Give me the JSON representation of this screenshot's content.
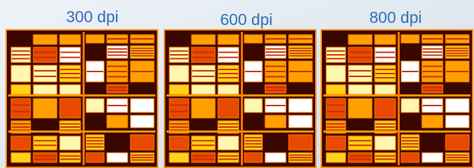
{
  "panels": [
    {
      "label": "300 dpi"
    },
    {
      "label": "600 dpi"
    },
    {
      "label": "800 dpi"
    }
  ]
}
